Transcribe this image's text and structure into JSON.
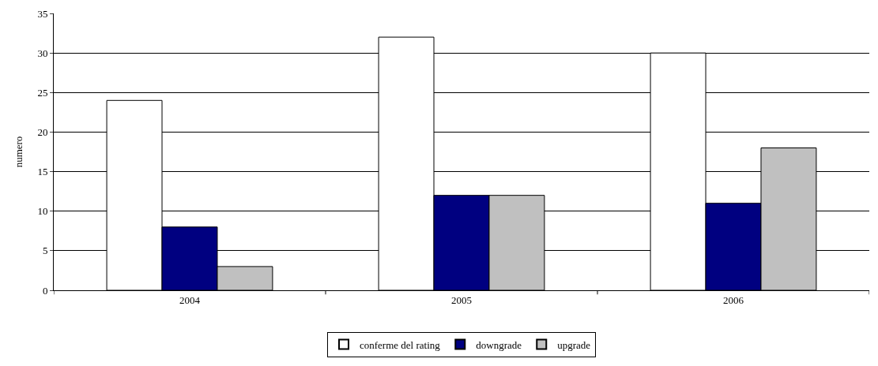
{
  "chart_data": {
    "type": "bar",
    "ylabel": "numero",
    "categories": [
      "2004",
      "2005",
      "2006"
    ],
    "series": [
      {
        "name": "conferme del rating",
        "color": "#ffffff",
        "values": [
          24,
          32,
          30
        ]
      },
      {
        "name": "downgrade",
        "color": "#000080",
        "values": [
          8,
          12,
          11
        ]
      },
      {
        "name": "upgrade",
        "color": "#c0c0c0",
        "values": [
          3,
          12,
          18
        ]
      }
    ],
    "ylim": [
      0,
      35
    ],
    "yticks": [
      0,
      5,
      10,
      15,
      20,
      25,
      30,
      35
    ],
    "grid": "y",
    "legend": "bottom"
  }
}
